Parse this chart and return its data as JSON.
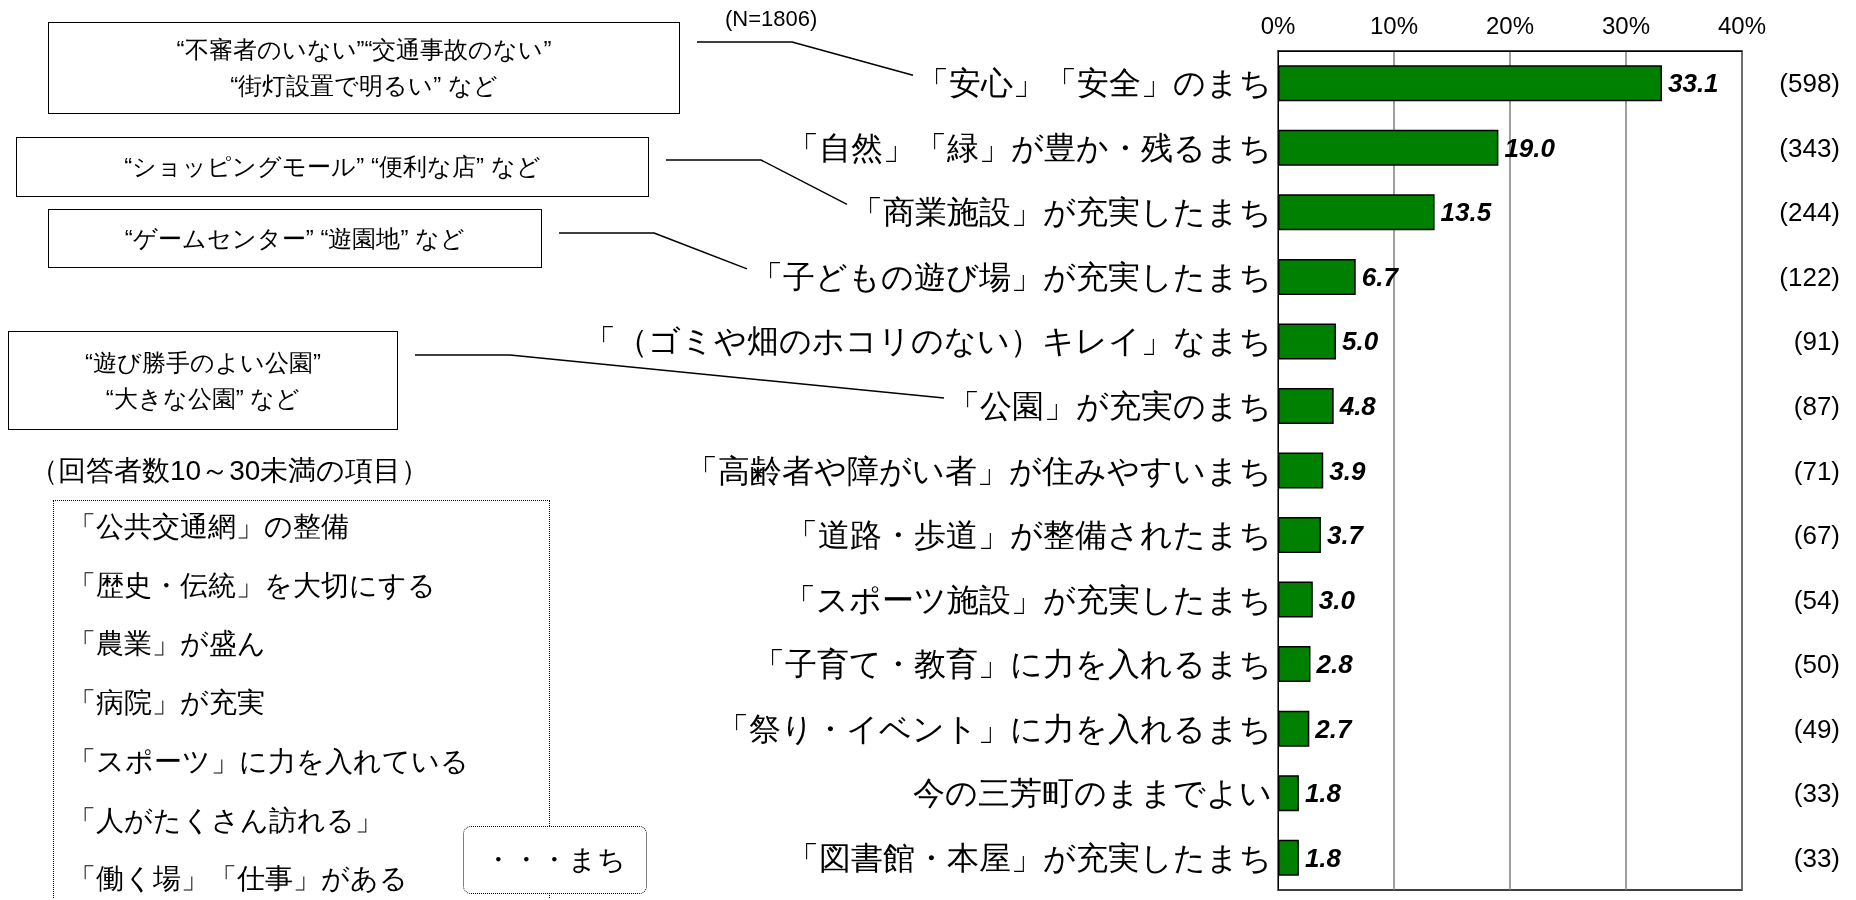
{
  "chart_data": {
    "type": "bar",
    "orientation": "horizontal",
    "subtitle": "(N=1806)",
    "categories": [
      "「安心」「安全」のまち",
      "「自然」「緑」が豊か・残るまち",
      "「商業施設」が充実したまち",
      "「子どもの遊び場」が充実したまち",
      "「（ゴミや畑のホコリのない）キレイ」なまち",
      "「公園」が充実のまち",
      "「高齢者や障がい者」が住みやすいまち",
      "「道路・歩道」が整備されたまち",
      "「スポーツ施設」が充実したまち",
      "「子育て・教育」に力を入れるまち",
      "「祭り・イベント」に力を入れるまち",
      "今の三芳町のままでよい",
      "「図書館・本屋」が充実したまち"
    ],
    "values": [
      33.1,
      19.0,
      13.5,
      6.7,
      5.0,
      4.8,
      3.9,
      3.7,
      3.0,
      2.8,
      2.7,
      1.8,
      1.8
    ],
    "value_labels": [
      "33.1",
      "19.0",
      "13.5",
      "6.7",
      "5.0",
      "4.8",
      "3.9",
      "3.7",
      "3.0",
      "2.8",
      "2.7",
      "1.8",
      "1.8"
    ],
    "color": "#008000",
    "xlim": [
      0,
      40
    ],
    "xticks": [
      {
        "value": 0,
        "label": "0%"
      },
      {
        "value": 10,
        "label": "10%"
      },
      {
        "value": 20,
        "label": "20%"
      },
      {
        "value": 30,
        "label": "30%"
      },
      {
        "value": 40,
        "label": "40%"
      }
    ],
    "grid": "x",
    "annotations": [
      "“不審者のいない”“交通事故のない”\n“街灯設置で明るい” など",
      "“ショッピングモール” “便利な店” など",
      "“ゲームセンター” “遊園地” など",
      "“遊び勝手のよい公園”\n“大きな公園” など",
      "(598)",
      "(343)",
      "(244)",
      "(122)",
      "(91)",
      "(87)",
      "(71)",
      "(67)",
      "(54)",
      "(50)",
      "(49)",
      "(33)",
      "(33)",
      "（回答者数10～30未満の項目）",
      "「公共交通網」の整備",
      "「歴史・伝統」を大切にする",
      "「農業」が盛ん",
      "「病院」が充実",
      "「スポーツ」に力を入れている",
      "「人がたくさん訪れる」",
      "「働く場」「仕事」がある",
      "・・・まち"
    ]
  }
}
